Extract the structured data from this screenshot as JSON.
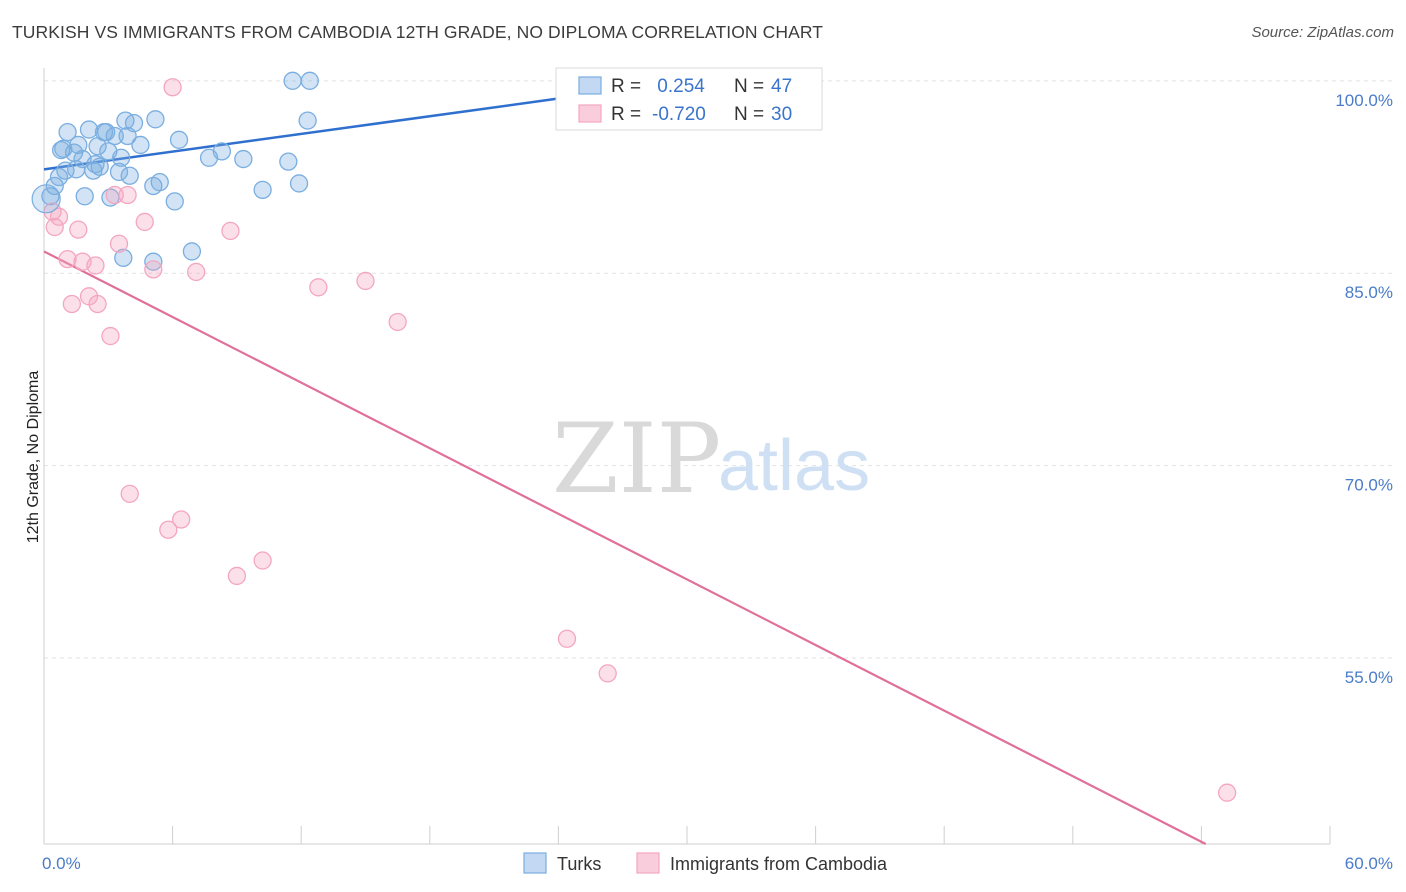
{
  "title": "TURKISH VS IMMIGRANTS FROM CAMBODIA 12TH GRADE, NO DIPLOMA CORRELATION CHART",
  "source": "Source: ZipAtlas.com",
  "watermark": {
    "zip": "ZIP",
    "atlas": "atlas"
  },
  "chart_data": {
    "type": "scatter",
    "title": "TURKISH VS IMMIGRANTS FROM CAMBODIA 12TH GRADE, NO DIPLOMA CORRELATION CHART",
    "xlabel": "",
    "ylabel": "12th Grade, No Diploma",
    "xlim": [
      0,
      60
    ],
    "ylim": [
      40.5,
      101
    ],
    "x_tick_labels": [
      "0.0%",
      "60.0%"
    ],
    "y_ticks": [
      {
        "value": 100,
        "label": "100.0%"
      },
      {
        "value": 85,
        "label": "85.0%"
      },
      {
        "value": 70,
        "label": "70.0%"
      },
      {
        "value": 55,
        "label": "55.0%"
      }
    ],
    "grid": "horizontal dashed",
    "legend_placement": "top-center",
    "stats": [
      {
        "r_label": "R =",
        "r_value": " 0.254",
        "n_label": "N =",
        "n_value": "47"
      },
      {
        "r_label": "R =",
        "r_value": "-0.720",
        "n_label": "N =",
        "n_value": "30"
      }
    ],
    "series": [
      {
        "name": "Turks",
        "color": "#7aaee0",
        "line_color": "#2f6fce",
        "trend": {
          "x0": 0,
          "y0": 93.1,
          "x1": 30,
          "y1": 100.0,
          "solid_until_x": 24
        },
        "points": [
          [
            0.3,
            91.0
          ],
          [
            0.5,
            91.8
          ],
          [
            0.8,
            94.6
          ],
          [
            0.9,
            94.7
          ],
          [
            1.0,
            93.0
          ],
          [
            1.1,
            96.0
          ],
          [
            1.4,
            94.4
          ],
          [
            1.6,
            95.0
          ],
          [
            1.8,
            93.9
          ],
          [
            1.5,
            93.1
          ],
          [
            1.9,
            91.0
          ],
          [
            2.1,
            96.2
          ],
          [
            2.3,
            93.0
          ],
          [
            2.4,
            93.5
          ],
          [
            2.5,
            94.9
          ],
          [
            2.6,
            93.3
          ],
          [
            2.8,
            96.0
          ],
          [
            2.9,
            96.0
          ],
          [
            3.0,
            94.5
          ],
          [
            3.1,
            90.9
          ],
          [
            3.3,
            95.7
          ],
          [
            3.5,
            92.9
          ],
          [
            3.6,
            94.0
          ],
          [
            3.8,
            96.9
          ],
          [
            3.9,
            95.7
          ],
          [
            4.0,
            92.6
          ],
          [
            4.2,
            96.7
          ],
          [
            4.5,
            95.0
          ],
          [
            3.7,
            86.2
          ],
          [
            5.1,
            91.8
          ],
          [
            5.2,
            97.0
          ],
          [
            5.4,
            92.1
          ],
          [
            5.1,
            85.9
          ],
          [
            6.1,
            90.6
          ],
          [
            6.3,
            95.4
          ],
          [
            6.9,
            86.7
          ],
          [
            7.7,
            94.0
          ],
          [
            8.3,
            94.5
          ],
          [
            9.3,
            93.9
          ],
          [
            10.2,
            91.5
          ],
          [
            11.4,
            93.7
          ],
          [
            11.6,
            100.0
          ],
          [
            11.9,
            92.0
          ],
          [
            12.3,
            96.9
          ],
          [
            12.4,
            100.0
          ],
          [
            28.5,
            100.0
          ],
          [
            0.7,
            92.5
          ]
        ]
      },
      {
        "name": "Immigrants from Cambodia",
        "color": "#f4a6c0",
        "line_color": "#e0709a",
        "trend": {
          "x0": 0,
          "y0": 86.7,
          "x1": 54.2,
          "y1": 40.5
        },
        "points": [
          [
            0.4,
            89.8
          ],
          [
            0.5,
            88.6
          ],
          [
            0.7,
            89.4
          ],
          [
            1.1,
            86.1
          ],
          [
            1.3,
            82.6
          ],
          [
            1.6,
            88.4
          ],
          [
            1.8,
            85.9
          ],
          [
            2.1,
            83.2
          ],
          [
            2.4,
            85.6
          ],
          [
            2.5,
            82.6
          ],
          [
            3.1,
            80.1
          ],
          [
            3.3,
            91.1
          ],
          [
            3.5,
            87.3
          ],
          [
            3.9,
            91.1
          ],
          [
            4.0,
            67.8
          ],
          [
            4.7,
            89.0
          ],
          [
            5.1,
            85.3
          ],
          [
            5.8,
            65.0
          ],
          [
            6.0,
            99.5
          ],
          [
            6.4,
            65.8
          ],
          [
            7.1,
            85.1
          ],
          [
            8.7,
            88.3
          ],
          [
            9.0,
            61.4
          ],
          [
            10.2,
            62.6
          ],
          [
            12.8,
            83.9
          ],
          [
            15.0,
            84.4
          ],
          [
            16.5,
            81.2
          ],
          [
            24.4,
            56.5
          ],
          [
            26.3,
            53.8
          ],
          [
            55.2,
            44.5
          ]
        ]
      }
    ]
  }
}
